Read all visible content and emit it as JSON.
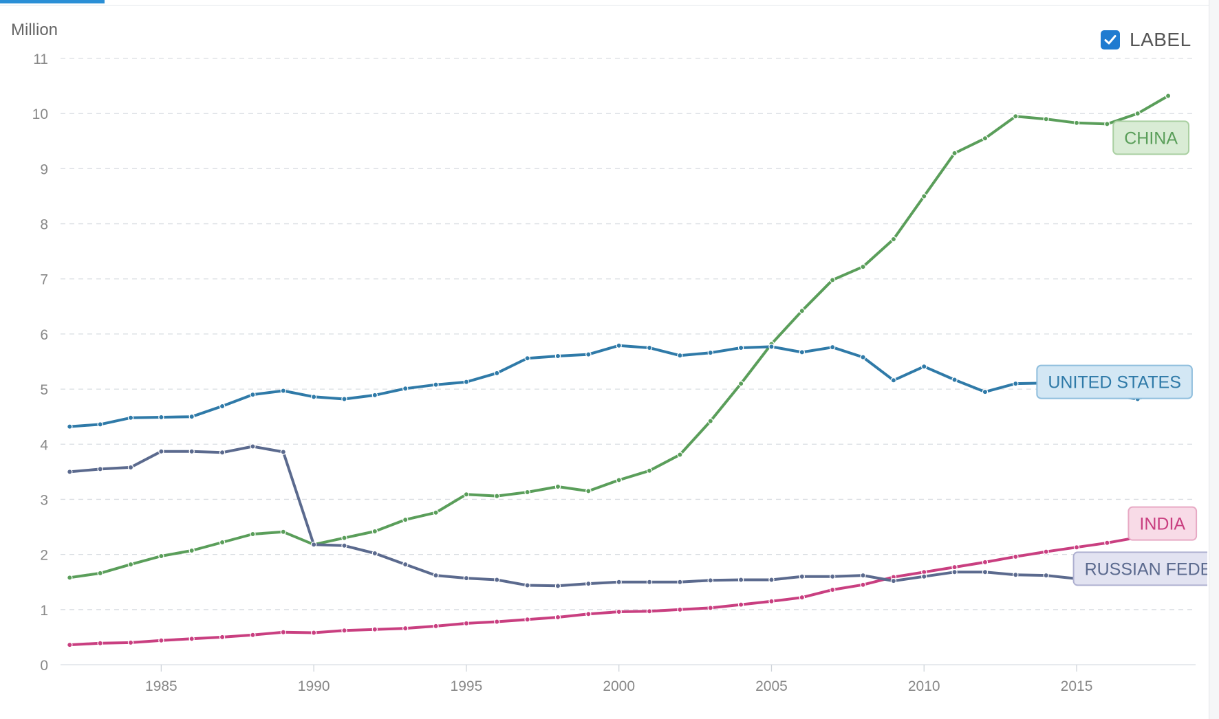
{
  "toggle": {
    "label": "LABEL",
    "checked": true
  },
  "chart_data": {
    "type": "line",
    "unit_label": "Million",
    "ylim": [
      0,
      11
    ],
    "xlim": [
      1981.7,
      2018.9
    ],
    "y_ticks": [
      0,
      1,
      2,
      3,
      4,
      5,
      6,
      7,
      8,
      9,
      10,
      11
    ],
    "x_ticks": [
      1985,
      1990,
      1995,
      2000,
      2005,
      2010,
      2015
    ],
    "grid": true,
    "x": [
      1982,
      1983,
      1984,
      1985,
      1986,
      1987,
      1988,
      1989,
      1990,
      1991,
      1992,
      1993,
      1994,
      1995,
      1996,
      1997,
      1998,
      1999,
      2000,
      2001,
      2002,
      2003,
      2004,
      2005,
      2006,
      2007,
      2008,
      2009,
      2010,
      2011,
      2012,
      2013,
      2014,
      2015,
      2016,
      2017,
      2018
    ],
    "series": [
      {
        "name": "CHINA",
        "color": "#5a9e5a",
        "label_fill": "#d9ecd5",
        "label_stroke": "#a9cfa1",
        "label_year": 2016.2,
        "label_value": 9.86,
        "values": [
          1.58,
          1.66,
          1.82,
          1.97,
          2.07,
          2.22,
          2.37,
          2.41,
          2.18,
          2.3,
          2.42,
          2.63,
          2.76,
          3.09,
          3.06,
          3.13,
          3.23,
          3.15,
          3.35,
          3.52,
          3.81,
          4.42,
          5.1,
          5.82,
          6.42,
          6.98,
          7.22,
          7.72,
          8.5,
          9.28,
          9.55,
          9.95,
          9.9,
          9.83,
          9.81,
          10.0,
          10.32
        ]
      },
      {
        "name": "UNITED STATES",
        "color": "#2f7aa8",
        "label_fill": "#d3e7f4",
        "label_stroke": "#8fbedd",
        "label_year": 2013.7,
        "label_value": 5.43,
        "values": [
          4.32,
          4.36,
          4.48,
          4.49,
          4.5,
          4.69,
          4.9,
          4.97,
          4.86,
          4.82,
          4.89,
          5.01,
          5.08,
          5.13,
          5.29,
          5.56,
          5.6,
          5.63,
          5.79,
          5.75,
          5.61,
          5.66,
          5.75,
          5.77,
          5.67,
          5.76,
          5.58,
          5.16,
          5.41,
          5.17,
          4.95,
          5.1,
          5.11,
          4.99,
          4.9,
          4.82,
          5.01
        ]
      },
      {
        "name": "INDIA",
        "color": "#c93f80",
        "label_fill": "#f8dbe7",
        "label_stroke": "#e7a9c4",
        "label_year": 2016.7,
        "label_value": 2.86,
        "values": [
          0.36,
          0.39,
          0.4,
          0.44,
          0.47,
          0.5,
          0.54,
          0.59,
          0.58,
          0.62,
          0.64,
          0.66,
          0.7,
          0.75,
          0.78,
          0.82,
          0.86,
          0.92,
          0.96,
          0.97,
          1.0,
          1.03,
          1.09,
          1.15,
          1.22,
          1.36,
          1.45,
          1.59,
          1.68,
          1.77,
          1.86,
          1.96,
          2.05,
          2.13,
          2.21,
          2.31,
          2.45
        ]
      },
      {
        "name": "RUSSIAN FEDERATION",
        "color": "#5b6a8e",
        "label_fill": "#e2e3f1",
        "label_stroke": "#aeb0d0",
        "label_year": 2014.9,
        "label_value": 2.04,
        "values": [
          3.5,
          3.55,
          3.58,
          3.87,
          3.87,
          3.85,
          3.96,
          3.86,
          2.18,
          2.16,
          2.02,
          1.82,
          1.62,
          1.57,
          1.54,
          1.44,
          1.43,
          1.47,
          1.5,
          1.5,
          1.5,
          1.53,
          1.54,
          1.54,
          1.6,
          1.6,
          1.62,
          1.52,
          1.6,
          1.68,
          1.68,
          1.63,
          1.62,
          1.56,
          1.54,
          1.57,
          1.62
        ]
      }
    ]
  }
}
